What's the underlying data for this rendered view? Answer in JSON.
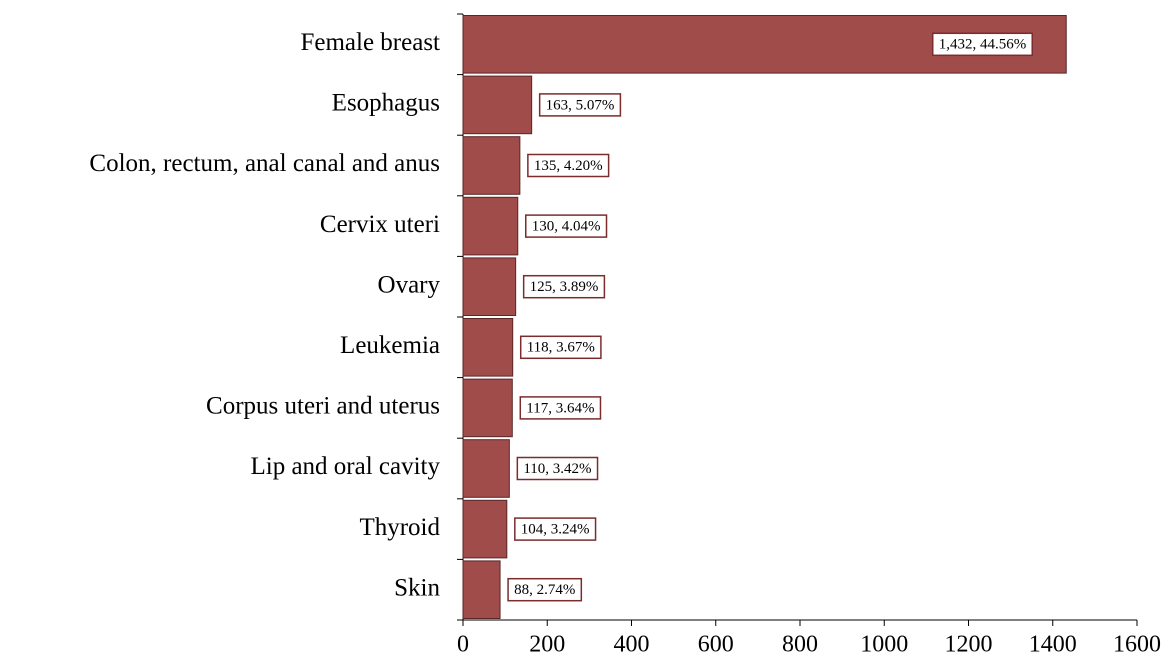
{
  "chart_data": {
    "type": "bar",
    "orientation": "horizontal",
    "categories": [
      "Female breast",
      "Esophagus",
      "Colon, rectum, anal canal and anus",
      "Cervix uteri",
      "Ovary",
      "Leukemia",
      "Corpus uteri and uterus",
      "Lip and oral cavity",
      "Thyroid",
      "Skin"
    ],
    "values": [
      1432,
      163,
      135,
      130,
      125,
      118,
      117,
      110,
      104,
      88
    ],
    "value_labels": [
      "1,432, 44.56%",
      "163, 5.07%",
      "135, 4.20%",
      "130, 4.04%",
      "125, 3.89%",
      "118, 3.67%",
      "117, 3.64%",
      "110, 3.42%",
      "104, 3.24%",
      "88, 2.74%"
    ],
    "color": "#a04c4b",
    "xlim": [
      0,
      1600
    ],
    "xticks": [
      0,
      200,
      400,
      600,
      800,
      1000,
      1200,
      1400,
      1600
    ]
  }
}
